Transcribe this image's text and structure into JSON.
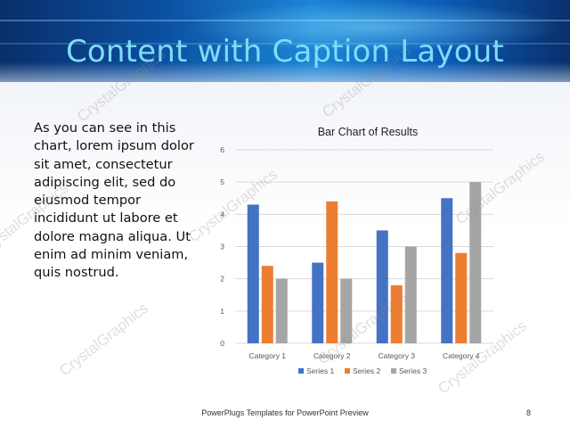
{
  "slide": {
    "title": "Content with Caption Layout",
    "body_text": "As you can see in this chart, lorem ipsum dolor sit amet, consectetur adipiscing elit, sed do eiusmod tempor incididunt ut labore et dolore magna aliqua. Ut enim ad minim veniam, quis nostrud.",
    "footer": "PowerPlugs Templates for PowerPoint Preview",
    "page_number": "8"
  },
  "watermark": {
    "text": "CrystalGraphics"
  },
  "colors": {
    "title": "#7fdcf6",
    "banner": "#0b4fa0",
    "series": [
      "#4472c4",
      "#ed7d31",
      "#a5a5a5"
    ],
    "gridline": "#d9d9d9",
    "axis_text": "#595959"
  },
  "chart_data": {
    "type": "bar",
    "title": "Bar Chart of Results",
    "categories": [
      "Category 1",
      "Category 2",
      "Category 3",
      "Category 4"
    ],
    "series": [
      {
        "name": "Series 1",
        "values": [
          4.3,
          2.5,
          3.5,
          4.5
        ]
      },
      {
        "name": "Series 2",
        "values": [
          2.4,
          4.4,
          1.8,
          2.8
        ]
      },
      {
        "name": "Series 3",
        "values": [
          2,
          2,
          3,
          5
        ]
      }
    ],
    "ylim": [
      0,
      6
    ],
    "yticks": [
      "0",
      "1",
      "2",
      "3",
      "4",
      "5",
      "6"
    ],
    "grid": true,
    "legend": "bottom"
  }
}
